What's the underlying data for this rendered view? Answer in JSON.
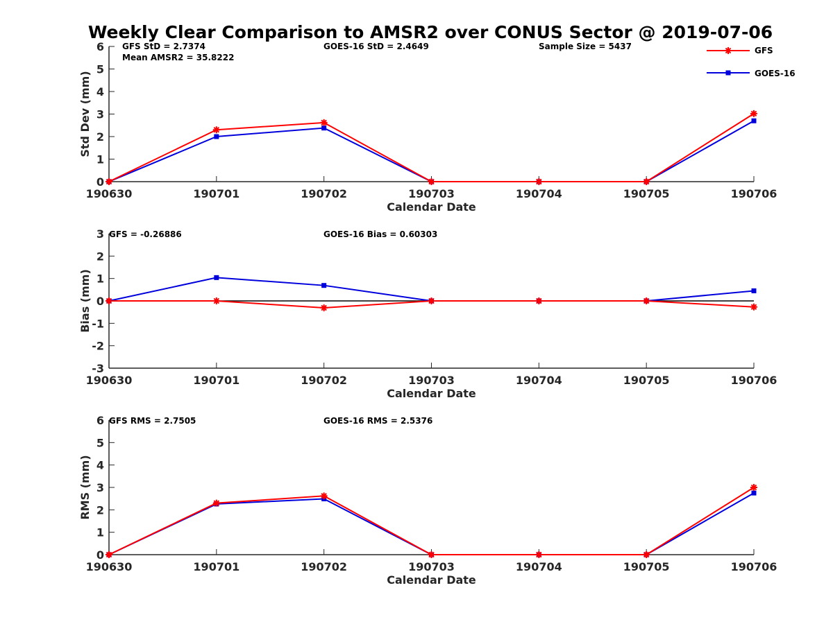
{
  "colors": {
    "gfs": "#ff0000",
    "goes16": "#0000dd",
    "axis": "#262626",
    "zero_line": "#000000"
  },
  "legend": [
    {
      "name": "GFS",
      "marker": "asterisk",
      "color": "#ff0000"
    },
    {
      "name": "GOES-16",
      "marker": "square",
      "color": "#0000dd"
    }
  ],
  "chart_data": [
    {
      "type": "line",
      "title": "Weekly Clear Comparison to AMSR2 over CONUS Sector @ 2019-07-06",
      "xlabel": "Calendar Date",
      "ylabel": "Std Dev (mm)",
      "categories": [
        "190630",
        "190701",
        "190702",
        "190703",
        "190704",
        "190705",
        "190706"
      ],
      "yticks": [
        0,
        1,
        2,
        3,
        4,
        5,
        6
      ],
      "ylim": [
        0,
        6
      ],
      "grid": false,
      "legend_position": "top-right outside",
      "annotations": [
        "GFS StD = 2.7374",
        "Mean AMSR2 = 35.8222",
        "GOES-16 StD = 2.4649",
        "Sample Size = 5437"
      ],
      "series": [
        {
          "name": "GFS",
          "values": [
            0.0,
            2.3,
            2.62,
            0.0,
            0.0,
            0.0,
            3.02
          ]
        },
        {
          "name": "GOES-16",
          "values": [
            0.0,
            2.0,
            2.38,
            0.0,
            0.0,
            0.0,
            2.7
          ]
        }
      ]
    },
    {
      "type": "line",
      "xlabel": "Calendar Date",
      "ylabel": "Bias (mm)",
      "categories": [
        "190630",
        "190701",
        "190702",
        "190703",
        "190704",
        "190705",
        "190706"
      ],
      "yticks": [
        -3,
        -2,
        -1,
        0,
        1,
        2,
        3
      ],
      "ylim": [
        -3,
        3
      ],
      "grid": false,
      "zero_line": true,
      "annotations": [
        "GFS = -0.26886",
        "GOES-16 Bias  = 0.60303"
      ],
      "series": [
        {
          "name": "GFS",
          "values": [
            0.0,
            0.0,
            -0.31,
            0.0,
            0.0,
            0.0,
            -0.27
          ]
        },
        {
          "name": "GOES-16",
          "values": [
            0.0,
            1.04,
            0.69,
            0.0,
            0.0,
            0.0,
            0.45
          ]
        }
      ]
    },
    {
      "type": "line",
      "xlabel": "Calendar Date",
      "ylabel": "RMS (mm)",
      "categories": [
        "190630",
        "190701",
        "190702",
        "190703",
        "190704",
        "190705",
        "190706"
      ],
      "yticks": [
        0,
        1,
        2,
        3,
        4,
        5,
        6
      ],
      "ylim": [
        0,
        6
      ],
      "grid": false,
      "annotations": [
        "GFS RMS = 2.7505",
        "GOES-16 RMS = 2.5376"
      ],
      "series": [
        {
          "name": "GFS",
          "values": [
            0.0,
            2.3,
            2.62,
            0.0,
            0.0,
            0.0,
            3.0
          ]
        },
        {
          "name": "GOES-16",
          "values": [
            0.0,
            2.26,
            2.49,
            0.0,
            0.0,
            0.0,
            2.75
          ]
        }
      ]
    }
  ]
}
